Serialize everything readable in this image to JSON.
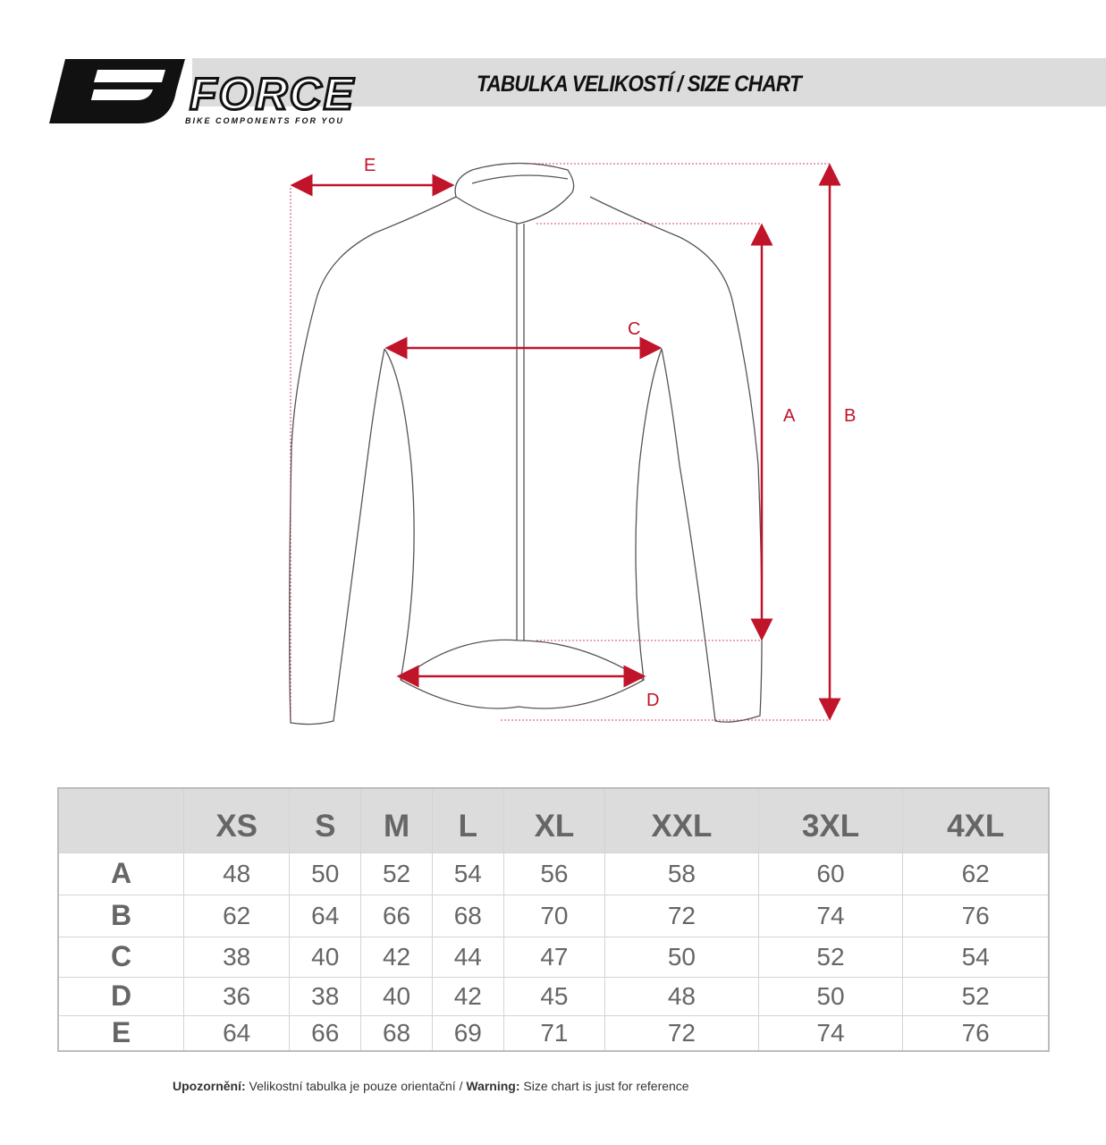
{
  "header": {
    "brand": "FORCE",
    "tagline": "BIKE COMPONENTS FOR YOU",
    "title": "TABULKA VELIKOSTÍ / SIZE CHART"
  },
  "diagram": {
    "labels": {
      "A": "A",
      "B": "B",
      "C": "C",
      "D": "D",
      "E": "E"
    },
    "accent_color": "#c0142a"
  },
  "table": {
    "sizes": [
      "XS",
      "S",
      "M",
      "L",
      "XL",
      "XXL",
      "3XL",
      "4XL"
    ],
    "rows": [
      {
        "label": "A",
        "values": [
          "48",
          "50",
          "52",
          "54",
          "56",
          "58",
          "60",
          "62"
        ]
      },
      {
        "label": "B",
        "values": [
          "62",
          "64",
          "66",
          "68",
          "70",
          "72",
          "74",
          "76"
        ]
      },
      {
        "label": "C",
        "values": [
          "38",
          "40",
          "42",
          "44",
          "47",
          "50",
          "52",
          "54"
        ]
      },
      {
        "label": "D",
        "values": [
          "36",
          "38",
          "40",
          "42",
          "45",
          "48",
          "50",
          "52"
        ]
      },
      {
        "label": "E",
        "values": [
          "64",
          "66",
          "68",
          "69",
          "71",
          "72",
          "74",
          "76"
        ]
      }
    ]
  },
  "note": {
    "cz_label": "Upozornění:",
    "cz_text": " Velikostní tabulka je pouze orientační / ",
    "en_label": "Warning:",
    "en_text": " Size chart is just for reference"
  }
}
